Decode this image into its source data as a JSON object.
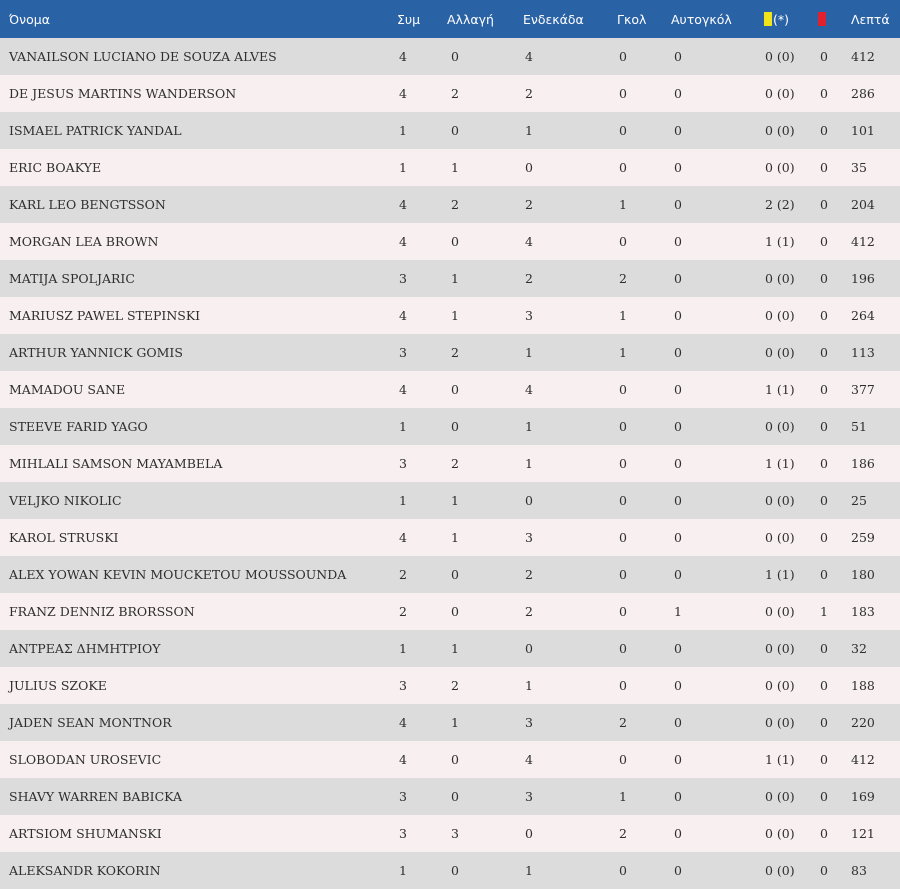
{
  "header": {
    "name": "Όνομα",
    "apps": "Συμ",
    "sub": "Αλλαγή",
    "start": "Ενδεκάδα",
    "goals": "Γκολ",
    "own_goals": "Αυτογκόλ",
    "yellow_suffix": "(*)",
    "minutes": "Λεπτά"
  },
  "icons": {
    "yellow": "yellow-card-icon",
    "red": "red-card-icon"
  },
  "colors": {
    "header_bg": "#2a62a6",
    "row_odd": "#dcdcdc",
    "row_even": "#f7eff0",
    "yellow_card": "#f2e21a",
    "red_card": "#e0212f"
  },
  "rows": [
    {
      "name": "VANAILSON LUCIANO DE SOUZA ALVES",
      "apps": "4",
      "sub": "0",
      "start": "4",
      "goals": "0",
      "own_goals": "0",
      "yellow": "0 (0)",
      "red": "0",
      "minutes": "412"
    },
    {
      "name": "DE JESUS MARTINS WANDERSON",
      "apps": "4",
      "sub": "2",
      "start": "2",
      "goals": "0",
      "own_goals": "0",
      "yellow": "0 (0)",
      "red": "0",
      "minutes": "286"
    },
    {
      "name": "ISMAEL PATRICK YANDAL",
      "apps": "1",
      "sub": "0",
      "start": "1",
      "goals": "0",
      "own_goals": "0",
      "yellow": "0 (0)",
      "red": "0",
      "minutes": "101"
    },
    {
      "name": "ERIC BOAKYE",
      "apps": "1",
      "sub": "1",
      "start": "0",
      "goals": "0",
      "own_goals": "0",
      "yellow": "0 (0)",
      "red": "0",
      "minutes": "35"
    },
    {
      "name": "KARL LEO BENGTSSON",
      "apps": "4",
      "sub": "2",
      "start": "2",
      "goals": "1",
      "own_goals": "0",
      "yellow": "2 (2)",
      "red": "0",
      "minutes": "204"
    },
    {
      "name": "MORGAN LEA BROWN",
      "apps": "4",
      "sub": "0",
      "start": "4",
      "goals": "0",
      "own_goals": "0",
      "yellow": "1 (1)",
      "red": "0",
      "minutes": "412"
    },
    {
      "name": "MATIJA SPOLJARIC",
      "apps": "3",
      "sub": "1",
      "start": "2",
      "goals": "2",
      "own_goals": "0",
      "yellow": "0 (0)",
      "red": "0",
      "minutes": "196"
    },
    {
      "name": "MARIUSZ PAWEL STEPINSKI",
      "apps": "4",
      "sub": "1",
      "start": "3",
      "goals": "1",
      "own_goals": "0",
      "yellow": "0 (0)",
      "red": "0",
      "minutes": "264"
    },
    {
      "name": "ARTHUR YANNICK GOMIS",
      "apps": "3",
      "sub": "2",
      "start": "1",
      "goals": "1",
      "own_goals": "0",
      "yellow": "0 (0)",
      "red": "0",
      "minutes": "113"
    },
    {
      "name": "MAMADOU SANE",
      "apps": "4",
      "sub": "0",
      "start": "4",
      "goals": "0",
      "own_goals": "0",
      "yellow": "1 (1)",
      "red": "0",
      "minutes": "377"
    },
    {
      "name": "STEEVE FARID YAGO",
      "apps": "1",
      "sub": "0",
      "start": "1",
      "goals": "0",
      "own_goals": "0",
      "yellow": "0 (0)",
      "red": "0",
      "minutes": "51"
    },
    {
      "name": "MIHLALI SAMSON MAYAMBELA",
      "apps": "3",
      "sub": "2",
      "start": "1",
      "goals": "0",
      "own_goals": "0",
      "yellow": "1 (1)",
      "red": "0",
      "minutes": "186"
    },
    {
      "name": "VELJKO NIKOLIC",
      "apps": "1",
      "sub": "1",
      "start": "0",
      "goals": "0",
      "own_goals": "0",
      "yellow": "0 (0)",
      "red": "0",
      "minutes": "25"
    },
    {
      "name": "KAROL STRUSKI",
      "apps": "4",
      "sub": "1",
      "start": "3",
      "goals": "0",
      "own_goals": "0",
      "yellow": "0 (0)",
      "red": "0",
      "minutes": "259"
    },
    {
      "name": "ALEX YOWAN KEVIN MOUCKETOU MOUSSOUNDA",
      "apps": "2",
      "sub": "0",
      "start": "2",
      "goals": "0",
      "own_goals": "0",
      "yellow": "1 (1)",
      "red": "0",
      "minutes": "180"
    },
    {
      "name": "FRANZ DENNIZ BRORSSON",
      "apps": "2",
      "sub": "0",
      "start": "2",
      "goals": "0",
      "own_goals": "1",
      "yellow": "0 (0)",
      "red": "1",
      "minutes": "183"
    },
    {
      "name": "ΑΝΤΡΕΑΣ ΔΗΜΗΤΡΙΟΥ",
      "apps": "1",
      "sub": "1",
      "start": "0",
      "goals": "0",
      "own_goals": "0",
      "yellow": "0 (0)",
      "red": "0",
      "minutes": "32"
    },
    {
      "name": "JULIUS SZOKE",
      "apps": "3",
      "sub": "2",
      "start": "1",
      "goals": "0",
      "own_goals": "0",
      "yellow": "0 (0)",
      "red": "0",
      "minutes": "188"
    },
    {
      "name": "JADEN SEAN MONTNOR",
      "apps": "4",
      "sub": "1",
      "start": "3",
      "goals": "2",
      "own_goals": "0",
      "yellow": "0 (0)",
      "red": "0",
      "minutes": "220"
    },
    {
      "name": "SLOBODAN UROSEVIC",
      "apps": "4",
      "sub": "0",
      "start": "4",
      "goals": "0",
      "own_goals": "0",
      "yellow": "1 (1)",
      "red": "0",
      "minutes": "412"
    },
    {
      "name": "SHAVY WARREN BABICKA",
      "apps": "3",
      "sub": "0",
      "start": "3",
      "goals": "1",
      "own_goals": "0",
      "yellow": "0 (0)",
      "red": "0",
      "minutes": "169"
    },
    {
      "name": "ARTSIOM SHUMANSKI",
      "apps": "3",
      "sub": "3",
      "start": "0",
      "goals": "2",
      "own_goals": "0",
      "yellow": "0 (0)",
      "red": "0",
      "minutes": "121"
    },
    {
      "name": "ALEKSANDR KOKORIN",
      "apps": "1",
      "sub": "0",
      "start": "1",
      "goals": "0",
      "own_goals": "0",
      "yellow": "0 (0)",
      "red": "0",
      "minutes": "83"
    }
  ]
}
